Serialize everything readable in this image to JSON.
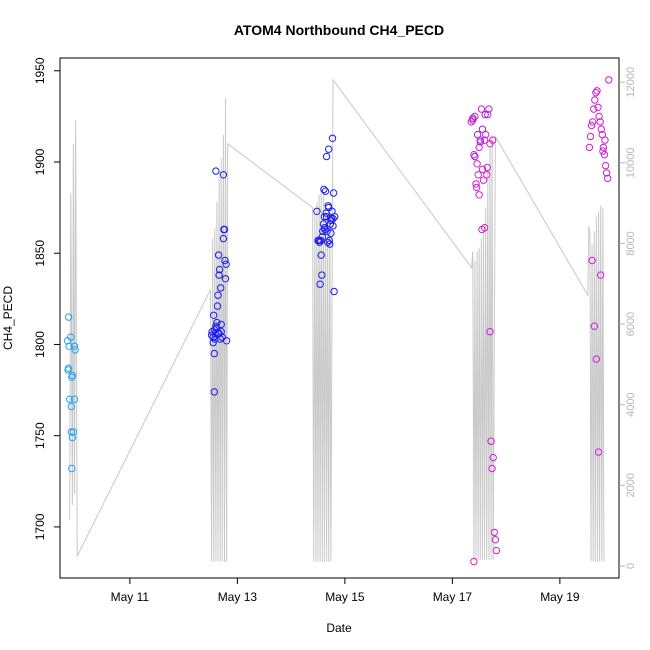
{
  "chart_data": {
    "type": "scatter",
    "title": "ATOM4 Northbound CH4_PECD",
    "xlabel": "Date",
    "ylabel": "CH4_PECD",
    "x_ticks": [
      {
        "day": 11,
        "label": "May 11"
      },
      {
        "day": 13,
        "label": "May 13"
      },
      {
        "day": 15,
        "label": "May 15"
      },
      {
        "day": 17,
        "label": "May 17"
      },
      {
        "day": 19,
        "label": "May 19"
      }
    ],
    "xlim": [
      9.7,
      20.1
    ],
    "ylim": [
      1672,
      1957
    ],
    "y_ticks": [
      1700,
      1750,
      1800,
      1850,
      1900,
      1950
    ],
    "y2lim": [
      -300,
      12600
    ],
    "y2_ticks": [
      0,
      2000,
      4000,
      6000,
      8000,
      10000,
      12000
    ],
    "grid": false,
    "legend": "none",
    "colors": {
      "cyan": "#27a3ee",
      "blue": "#1b1bf0",
      "magenta": "#d21ed2",
      "violet": "#9c1ee6",
      "altitude": "#c8c8c8"
    },
    "groups": [
      {
        "color": "cyan",
        "x": [
          9.86,
          9.84,
          9.9,
          9.87,
          9.88,
          9.91,
          9.93,
          9.92,
          9.85,
          9.86,
          9.97,
          9.98,
          9.97,
          9.95,
          9.93,
          9.92,
          9.91
        ],
        "y": [
          1815,
          1802,
          1804,
          1799,
          1770,
          1766,
          1783,
          1782,
          1786,
          1787,
          1799,
          1797,
          1770,
          1752,
          1749,
          1732,
          1752
        ]
      },
      {
        "color": "blue",
        "x": [
          12.52,
          12.53,
          12.55,
          12.56,
          12.57,
          12.58,
          12.59,
          12.6,
          12.62,
          12.63,
          12.64,
          12.65,
          12.66,
          12.67,
          12.68,
          12.69,
          12.7,
          12.72,
          12.74,
          12.75,
          12.76,
          12.77,
          12.78,
          12.79,
          12.8,
          12.55,
          12.58,
          12.61,
          12.66,
          12.7,
          12.74,
          12.57,
          12.6,
          12.64
        ],
        "y": [
          1805,
          1807,
          1801,
          1816,
          1795,
          1808,
          1806,
          1810,
          1812,
          1821,
          1827,
          1849,
          1838,
          1841,
          1803,
          1831,
          1811,
          1804,
          1858,
          1863,
          1863,
          1846,
          1836,
          1844,
          1802,
          1804,
          1803,
          1809,
          1806,
          1807,
          1893,
          1774,
          1895,
          1806
        ]
      },
      {
        "color": "blue",
        "x": [
          14.48,
          14.5,
          14.52,
          14.54,
          14.56,
          14.57,
          14.58,
          14.6,
          14.61,
          14.62,
          14.63,
          14.64,
          14.65,
          14.66,
          14.67,
          14.68,
          14.69,
          14.7,
          14.71,
          14.72,
          14.73,
          14.74,
          14.75,
          14.76,
          14.77,
          14.78,
          14.79,
          14.8,
          14.53,
          14.55,
          14.59,
          14.62,
          14.66,
          14.7,
          14.74,
          14.78,
          14.81
        ],
        "y": [
          1873,
          1857,
          1857,
          1833,
          1849,
          1838,
          1859,
          1866,
          1885,
          1864,
          1863,
          1884,
          1872,
          1870,
          1862,
          1856,
          1876,
          1875,
          1857,
          1855,
          1866,
          1861,
          1869,
          1873,
          1913,
          1869,
          1883,
          1829,
          1856,
          1857,
          1862,
          1870,
          1903,
          1907,
          1868,
          1865,
          1870
        ]
      },
      {
        "color": "magenta",
        "x": [
          17.35,
          17.38,
          17.4,
          17.42,
          17.44,
          17.46,
          17.48,
          17.5,
          17.52,
          17.54,
          17.56,
          17.58,
          17.6,
          17.62,
          17.64,
          17.66,
          17.68,
          17.7,
          17.72,
          17.74,
          17.76,
          17.78,
          17.8,
          17.82,
          17.4,
          17.45,
          17.5,
          17.55,
          17.6,
          17.65,
          17.7,
          17.75
        ],
        "y": [
          1922,
          1923,
          1904,
          1925,
          1888,
          1899,
          1893,
          1908,
          1912,
          1929,
          1896,
          1890,
          1912,
          1915,
          1893,
          1926,
          1929,
          1807,
          1747,
          1732,
          1738,
          1697,
          1693,
          1687,
          1681,
          1886,
          1882,
          1863,
          1864,
          1897,
          1910,
          1912
        ]
      },
      {
        "color": "violet",
        "x": [
          17.38,
          17.42,
          17.47,
          17.52,
          17.56,
          17.61
        ],
        "y": [
          1924,
          1903,
          1915,
          1911,
          1918,
          1926
        ]
      },
      {
        "color": "magenta",
        "x": [
          19.55,
          19.57,
          19.59,
          19.61,
          19.63,
          19.65,
          19.67,
          19.69,
          19.71,
          19.73,
          19.75,
          19.77,
          19.79,
          19.81,
          19.83,
          19.85,
          19.87,
          19.89,
          19.91,
          19.6,
          19.64,
          19.68,
          19.72,
          19.76,
          19.8,
          19.84
        ],
        "y": [
          1908,
          1914,
          1920,
          1922,
          1929,
          1934,
          1938,
          1939,
          1930,
          1925,
          1922,
          1918,
          1915,
          1908,
          1904,
          1898,
          1894,
          1891,
          1945,
          1846,
          1810,
          1792,
          1741,
          1838,
          1906,
          1912
        ]
      }
    ],
    "altitude_line": [
      [
        9.88,
        1704
      ],
      [
        9.9,
        1883
      ],
      [
        9.93,
        1712
      ],
      [
        9.95,
        1910
      ],
      [
        9.97,
        1718
      ],
      [
        9.99,
        1923
      ],
      [
        10.02,
        1684
      ],
      [
        12.5,
        1830
      ],
      [
        12.52,
        1681
      ],
      [
        12.54,
        1858
      ],
      [
        12.56,
        1681
      ],
      [
        12.58,
        1864
      ],
      [
        12.6,
        1681
      ],
      [
        12.62,
        1878
      ],
      [
        12.64,
        1681
      ],
      [
        12.66,
        1892
      ],
      [
        12.68,
        1681
      ],
      [
        12.7,
        1902
      ],
      [
        12.72,
        1681
      ],
      [
        12.74,
        1915
      ],
      [
        12.76,
        1681
      ],
      [
        12.78,
        1935
      ],
      [
        12.8,
        1681
      ],
      [
        12.82,
        1910
      ],
      [
        14.4,
        1875
      ],
      [
        14.42,
        1681
      ],
      [
        14.44,
        1872
      ],
      [
        14.46,
        1681
      ],
      [
        14.48,
        1878
      ],
      [
        14.5,
        1681
      ],
      [
        14.52,
        1882
      ],
      [
        14.54,
        1681
      ],
      [
        14.56,
        1886
      ],
      [
        14.58,
        1681
      ],
      [
        14.6,
        1883
      ],
      [
        14.62,
        1681
      ],
      [
        14.64,
        1877
      ],
      [
        14.66,
        1681
      ],
      [
        14.68,
        1870
      ],
      [
        14.7,
        1681
      ],
      [
        14.72,
        1873
      ],
      [
        14.74,
        1681
      ],
      [
        14.78,
        1945
      ],
      [
        17.36,
        1842
      ],
      [
        17.38,
        1851
      ],
      [
        17.4,
        1682
      ],
      [
        17.42,
        1846
      ],
      [
        17.44,
        1682
      ],
      [
        17.46,
        1851
      ],
      [
        17.48,
        1682
      ],
      [
        17.5,
        1853
      ],
      [
        17.52,
        1682
      ],
      [
        17.54,
        1858
      ],
      [
        17.56,
        1682
      ],
      [
        17.58,
        1862
      ],
      [
        17.6,
        1682
      ],
      [
        17.62,
        1875
      ],
      [
        17.64,
        1682
      ],
      [
        17.66,
        1896
      ],
      [
        17.68,
        1682
      ],
      [
        17.7,
        1908
      ],
      [
        17.72,
        1682
      ],
      [
        17.74,
        1915
      ],
      [
        17.76,
        1682
      ],
      [
        17.8,
        1914
      ],
      [
        19.52,
        1827
      ],
      [
        19.54,
        1865
      ],
      [
        19.56,
        1860
      ],
      [
        19.58,
        1681
      ],
      [
        19.6,
        1855
      ],
      [
        19.62,
        1681
      ],
      [
        19.64,
        1862
      ],
      [
        19.66,
        1681
      ],
      [
        19.68,
        1870
      ],
      [
        19.7,
        1681
      ],
      [
        19.72,
        1873
      ],
      [
        19.74,
        1681
      ],
      [
        19.76,
        1876
      ],
      [
        19.78,
        1681
      ],
      [
        19.8,
        1875
      ],
      [
        19.82,
        1681
      ]
    ]
  }
}
